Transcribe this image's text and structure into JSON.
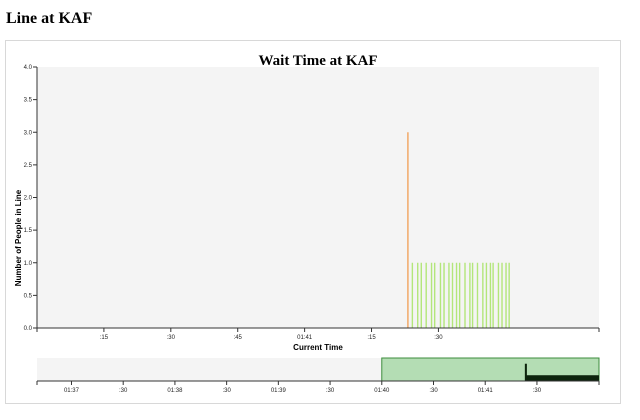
{
  "page": {
    "heading": "Line at KAF"
  },
  "colors": {
    "plot_background": "#f4f4f4",
    "bar_orange": "#f2a35e",
    "bar_green": "#b3e67a",
    "brush_fill": "#a8d8a8",
    "brush_stroke": "#3c8c3c",
    "context_area": "#0d240d",
    "axis": "#333333"
  },
  "chart_data": {
    "type": "bar",
    "title": "Wait Time at KAF",
    "xlabel": "Current Time",
    "ylabel": "Number of People in Line",
    "grid": false,
    "time_unit": "seconds",
    "x_range": [
      "01:40:00",
      "01:42:06"
    ],
    "ylim": [
      0,
      4
    ],
    "y_ticks": [
      "0.0",
      "0.5",
      "1.0",
      "1.5",
      "2.0",
      "2.5",
      "3.0",
      "3.5",
      "4.0"
    ],
    "x_ticks": [
      {
        "label": ":15",
        "time": "01:40:15"
      },
      {
        "label": ":30",
        "time": "01:40:30"
      },
      {
        "label": ":45",
        "time": "01:40:45"
      },
      {
        "label": "01:41",
        "time": "01:41:00"
      },
      {
        "label": ":15",
        "time": "01:41:15"
      },
      {
        "label": ":30",
        "time": "01:41:30"
      }
    ],
    "bars": [
      {
        "time": "01:41:23.0",
        "value": 3,
        "color": "#f2a35e"
      },
      {
        "time": "01:41:24.0",
        "value": 1
      },
      {
        "time": "01:41:25.2",
        "value": 1
      },
      {
        "time": "01:41:26.0",
        "value": 1
      },
      {
        "time": "01:41:27.1",
        "value": 1
      },
      {
        "time": "01:41:28.3",
        "value": 1
      },
      {
        "time": "01:41:29.0",
        "value": 1
      },
      {
        "time": "01:41:30.3",
        "value": 1
      },
      {
        "time": "01:41:31.1",
        "value": 1
      },
      {
        "time": "01:41:32.2",
        "value": 1
      },
      {
        "time": "01:41:33.0",
        "value": 1
      },
      {
        "time": "01:41:33.9",
        "value": 1
      },
      {
        "time": "01:41:34.6",
        "value": 1
      },
      {
        "time": "01:41:35.8",
        "value": 1
      },
      {
        "time": "01:41:36.9",
        "value": 1
      },
      {
        "time": "01:41:37.5",
        "value": 1
      },
      {
        "time": "01:41:38.6",
        "value": 1
      },
      {
        "time": "01:41:39.8",
        "value": 1
      },
      {
        "time": "01:41:40.6",
        "value": 1
      },
      {
        "time": "01:41:41.5",
        "value": 1
      },
      {
        "time": "01:41:42.1",
        "value": 1
      },
      {
        "time": "01:41:43.3",
        "value": 1
      },
      {
        "time": "01:41:44.1",
        "value": 1
      },
      {
        "time": "01:41:45.0",
        "value": 1
      },
      {
        "time": "01:41:45.7",
        "value": 1
      }
    ],
    "context": {
      "x_range": [
        "01:36:40",
        "01:42:06"
      ],
      "x_ticks": [
        {
          "label": "01:37",
          "time": "01:37:00"
        },
        {
          "label": ":30",
          "time": "01:37:30"
        },
        {
          "label": "01:38",
          "time": "01:38:00"
        },
        {
          "label": ":30",
          "time": "01:38:30"
        },
        {
          "label": "01:39",
          "time": "01:39:00"
        },
        {
          "label": ":30",
          "time": "01:39:30"
        },
        {
          "label": "01:40",
          "time": "01:40:00"
        },
        {
          "label": ":30",
          "time": "01:40:30"
        },
        {
          "label": "01:41",
          "time": "01:41:00"
        },
        {
          "label": ":30",
          "time": "01:41:30"
        }
      ],
      "brush_extent": [
        "01:40:00",
        "01:42:06"
      ],
      "area_start": "01:41:23",
      "area_end": "01:42:06"
    }
  }
}
